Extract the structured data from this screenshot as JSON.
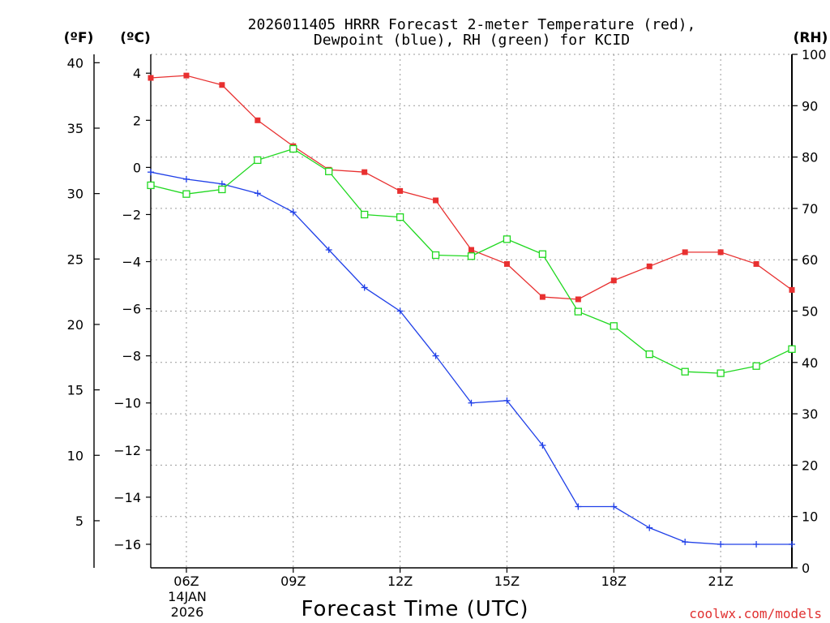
{
  "chart_data": {
    "type": "line",
    "title_line1": "2026011405 HRRR Forecast 2-meter Temperature (red),",
    "title_line2": "Dewpoint (blue), RH (green) for KCID",
    "xlabel": "Forecast Time (UTC)",
    "date_label_1": "14JAN",
    "date_label_2": "2026",
    "credit": "coolwx.com/models",
    "unit_f": "(ºF)",
    "unit_c": "(ºC)",
    "unit_rh": "(RH)",
    "x_hours": [
      5,
      6,
      7,
      8,
      9,
      10,
      11,
      12,
      13,
      14,
      15,
      16,
      17,
      18,
      19,
      20,
      21,
      22,
      23
    ],
    "x_ticks": [
      {
        "hour": 6,
        "label": "06Z"
      },
      {
        "hour": 9,
        "label": "09Z"
      },
      {
        "hour": 12,
        "label": "12Z"
      },
      {
        "hour": 15,
        "label": "15Z"
      },
      {
        "hour": 18,
        "label": "18Z"
      },
      {
        "hour": 21,
        "label": "21Z"
      }
    ],
    "xlim": [
      5,
      23
    ],
    "celsius_axis": {
      "ylim": [
        -17,
        4.8
      ],
      "ticks": [
        4,
        2,
        0,
        -2,
        -4,
        -6,
        -8,
        -10,
        -12,
        -14,
        -16
      ],
      "tick_labels": [
        "4",
        "2",
        "0",
        "−2",
        "−4",
        "−6",
        "−8",
        "−10",
        "−12",
        "−14",
        "−16"
      ]
    },
    "fahrenheit_axis": {
      "ticks": [
        40,
        35,
        30,
        25,
        20,
        15,
        10,
        5
      ],
      "tick_labels": [
        "40",
        "35",
        "30",
        "25",
        "20",
        "15",
        "10",
        "5"
      ]
    },
    "rh_axis": {
      "ylim": [
        0,
        100
      ],
      "ticks": [
        0,
        10,
        20,
        30,
        40,
        50,
        60,
        70,
        80,
        90,
        100
      ],
      "tick_labels": [
        "0",
        "10",
        "20",
        "30",
        "40",
        "50",
        "60",
        "70",
        "80",
        "90",
        "100"
      ]
    },
    "series": [
      {
        "name": "Temperature",
        "units": "C",
        "color": "#e83030",
        "values": [
          3.8,
          3.9,
          3.5,
          2.0,
          0.9,
          -0.1,
          -0.2,
          -1.0,
          -1.4,
          -3.5,
          -4.1,
          -5.5,
          -5.6,
          -4.8,
          -4.2,
          -3.6,
          -3.6,
          -4.1,
          -5.2
        ]
      },
      {
        "name": "Dewpoint",
        "units": "C",
        "color": "#2040e8",
        "values": [
          -0.2,
          -0.5,
          -0.7,
          -1.1,
          -1.9,
          -3.5,
          -5.1,
          -6.1,
          -8.0,
          -10.0,
          -9.9,
          -11.8,
          -14.4,
          -14.4,
          -15.3,
          -15.9,
          -16.0,
          -16.0,
          -16.0
        ]
      },
      {
        "name": "RH",
        "units": "%",
        "color": "#20d820",
        "values": [
          74.5,
          72.8,
          73.7,
          79.4,
          81.6,
          77.2,
          68.8,
          68.3,
          60.9,
          60.7,
          64.0,
          61.1,
          49.9,
          47.1,
          41.6,
          38.2,
          37.9,
          39.3,
          42.6
        ]
      }
    ]
  }
}
